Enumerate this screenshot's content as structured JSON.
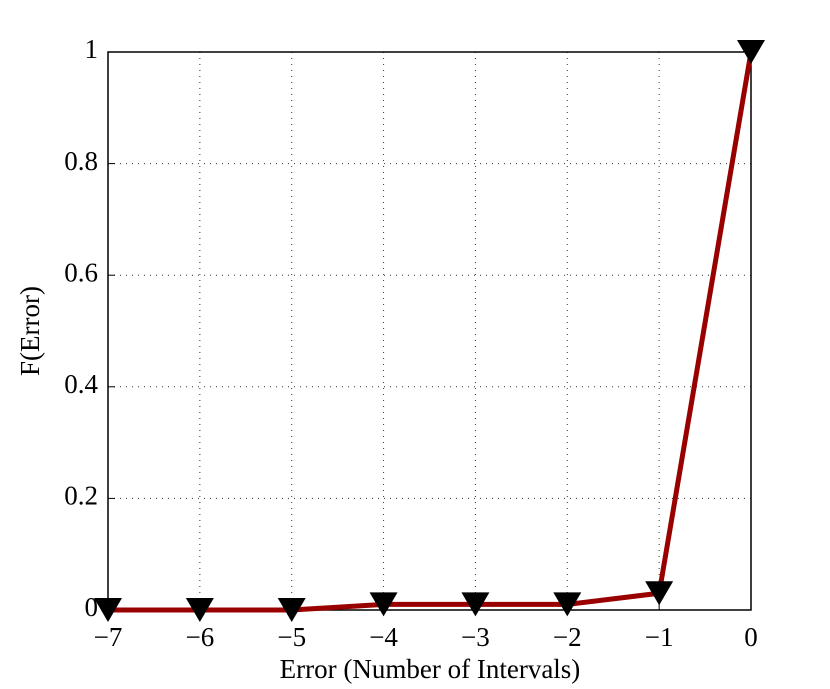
{
  "chart_data": {
    "type": "line",
    "x_label": "Error (Number of Intervals)",
    "y_label": "F(Error)",
    "x": [
      -7,
      -6,
      -5,
      -4,
      -3,
      -2,
      -1,
      0
    ],
    "series": [
      {
        "color": "#990000",
        "marker_color": "#000000",
        "marker": "triangle-down",
        "values": [
          0,
          0,
          0,
          0.01,
          0.01,
          0.01,
          0.03,
          1
        ]
      }
    ],
    "xlim": [
      -7,
      0
    ],
    "xticks": [
      {
        "value": -7,
        "label": "−7"
      },
      {
        "value": -6,
        "label": "−6"
      },
      {
        "value": -5,
        "label": "−5"
      },
      {
        "value": -4,
        "label": "−4"
      },
      {
        "value": -3,
        "label": "−3"
      },
      {
        "value": -2,
        "label": "−2"
      },
      {
        "value": -1,
        "label": "−1"
      },
      0
    ],
    "ylim": [
      0,
      1
    ],
    "yticks": [
      0,
      0.2,
      0.4,
      0.6,
      0.8,
      1
    ],
    "grid": true
  }
}
